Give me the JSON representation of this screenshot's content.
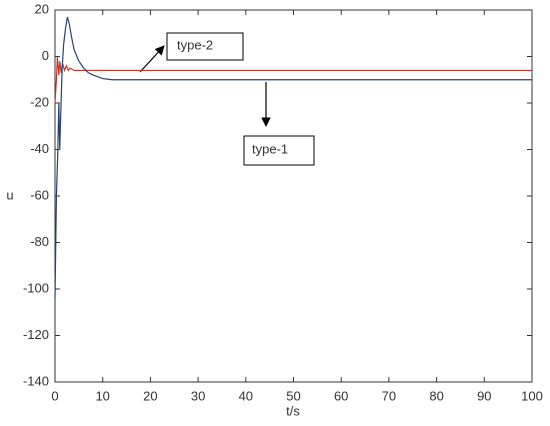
{
  "chart_data": {
    "type": "line",
    "xlabel": "t/s",
    "ylabel": "u",
    "xlim": [
      0,
      100
    ],
    "xticks": [
      0,
      10,
      20,
      30,
      40,
      50,
      60,
      70,
      80,
      90,
      100
    ],
    "ylim": [
      -140,
      20
    ],
    "yticks": [
      -140,
      -120,
      -100,
      -80,
      -60,
      -40,
      -20,
      0,
      20
    ],
    "grid": false,
    "series": [
      {
        "name": "type-1",
        "color": "#2a3f75",
        "x": [
          0,
          0.3,
          0.6,
          0.8,
          1.0,
          1.2,
          1.5,
          1.8,
          2.2,
          2.6,
          3.0,
          3.5,
          4,
          5,
          6,
          7,
          8,
          10,
          12,
          15,
          20,
          30,
          50,
          100
        ],
        "values": [
          -104,
          -60,
          -40,
          -20,
          -40,
          -25,
          -5,
          5,
          12,
          17,
          14,
          8,
          3,
          -2,
          -5,
          -7,
          -8,
          -9.5,
          -10,
          -10,
          -10,
          -10,
          -10,
          -10
        ]
      },
      {
        "name": "type-2",
        "color": "#c0392b",
        "x": [
          0,
          0.3,
          0.5,
          0.8,
          1.0,
          1.3,
          1.6,
          2.0,
          2.4,
          2.8,
          3.2,
          4,
          5,
          10,
          100
        ],
        "values": [
          -20,
          -10,
          0,
          -8,
          -2,
          -7,
          -3,
          -6,
          -4,
          -6,
          -5,
          -6,
          -6,
          -6,
          -6
        ]
      }
    ]
  }
}
